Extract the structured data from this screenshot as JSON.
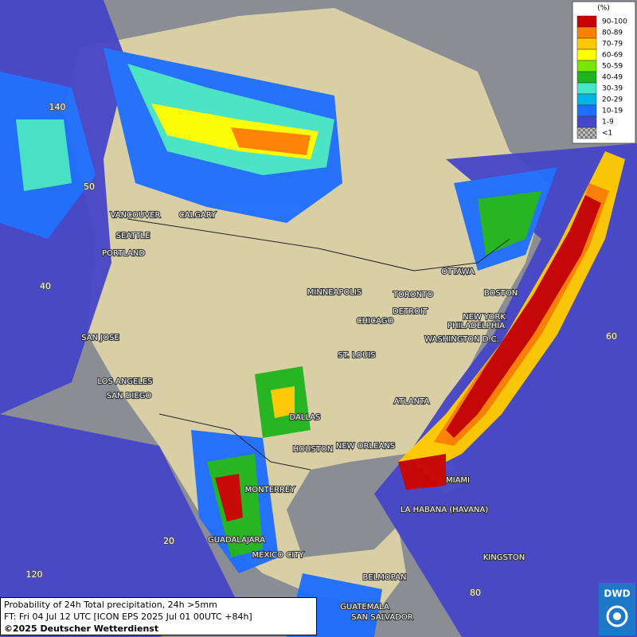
{
  "legend": {
    "unit": "(%)",
    "items": [
      {
        "label": "90-100",
        "color": "#c80000"
      },
      {
        "label": "80-89",
        "color": "#ff8000"
      },
      {
        "label": "70-79",
        "color": "#ffc800"
      },
      {
        "label": "60-69",
        "color": "#ffff00"
      },
      {
        "label": "50-59",
        "color": "#78e600"
      },
      {
        "label": "40-49",
        "color": "#1eb41e"
      },
      {
        "label": "30-39",
        "color": "#46e6c8"
      },
      {
        "label": "20-29",
        "color": "#00b4e6"
      },
      {
        "label": "10-19",
        "color": "#1e6eff"
      },
      {
        "label": "1-9",
        "color": "#4646c8"
      },
      {
        "label": "<1",
        "color": "#a0a0a0"
      }
    ]
  },
  "cities": [
    "VANCOUVER",
    "CALGARY",
    "SEATTLE",
    "PORTLAND",
    "MINNEAPOLIS",
    "TORONTO",
    "OTTAWA",
    "BOSTON",
    "DETROIT",
    "NEW YORK",
    "CHICAGO",
    "PHILADELPHIA",
    "WASHINGTON D.C.",
    "SAN JOSE",
    "ST. LOUIS",
    "LOS ANGELES",
    "SAN DIEGO",
    "ATLANTA",
    "DALLAS",
    "HOUSTON",
    "NEW ORLEANS",
    "MIAMI",
    "MONTERREY",
    "LA HABANA (HAVANA)",
    "GUADALAJARA",
    "MEXICO CITY",
    "KINGSTON",
    "BELMOPAN",
    "GUATEMALA",
    "SAN SALVADOR"
  ],
  "graticule": [
    "140",
    "50",
    "40",
    "60",
    "20",
    "120",
    "80"
  ],
  "caption": [
    "Probability of 24h Total precipitation, 24h >5mm",
    "FT: Fri 04 Jul 12 UTC [ICON EPS 2025 Jul 01 00UTC +84h]",
    "©2025 Deutscher Wetterdienst"
  ],
  "logo": "DWD"
}
